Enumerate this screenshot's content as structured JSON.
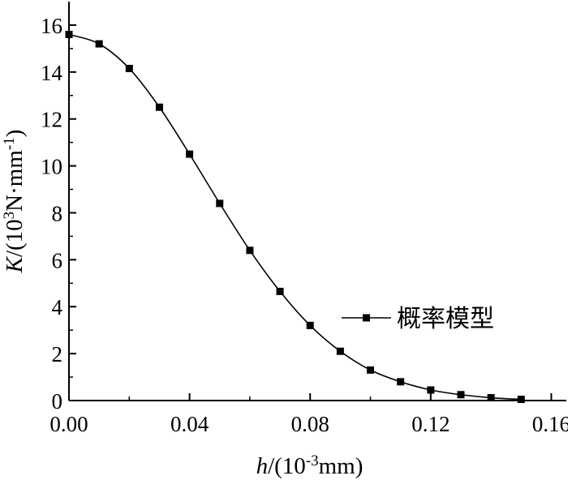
{
  "chart_data": {
    "type": "line",
    "xlabel": {
      "italic": "h",
      "rest": "/(10",
      "sup": "-3",
      "tail": "mm)"
    },
    "ylabel": {
      "italic": "K",
      "rest": "/(10",
      "sup1": "3",
      "mid": "N·mm",
      "sup2": "-1",
      "tail": ")"
    },
    "xlim": [
      0,
      0.165
    ],
    "ylim": [
      0,
      17
    ],
    "xticks": [
      0.0,
      0.04,
      0.08,
      0.12,
      0.16
    ],
    "xtick_labels": [
      "0.00",
      "0.04",
      "0.08",
      "0.12",
      "0.16"
    ],
    "yticks": [
      0,
      2,
      4,
      6,
      8,
      10,
      12,
      14,
      16
    ],
    "ytick_labels": [
      "0",
      "2",
      "4",
      "6",
      "8",
      "10",
      "12",
      "14",
      "16"
    ],
    "legend_position": "center-right",
    "grid": false,
    "series": [
      {
        "name": "概率模型",
        "marker": "square",
        "color": "#000000",
        "x": [
          0.0,
          0.01,
          0.02,
          0.03,
          0.04,
          0.05,
          0.06,
          0.07,
          0.08,
          0.09,
          0.1,
          0.11,
          0.12,
          0.13,
          0.14,
          0.15
        ],
        "y": [
          15.6,
          15.2,
          14.15,
          12.5,
          10.5,
          8.4,
          6.4,
          4.65,
          3.2,
          2.1,
          1.3,
          0.8,
          0.45,
          0.25,
          0.12,
          0.05
        ]
      }
    ]
  }
}
